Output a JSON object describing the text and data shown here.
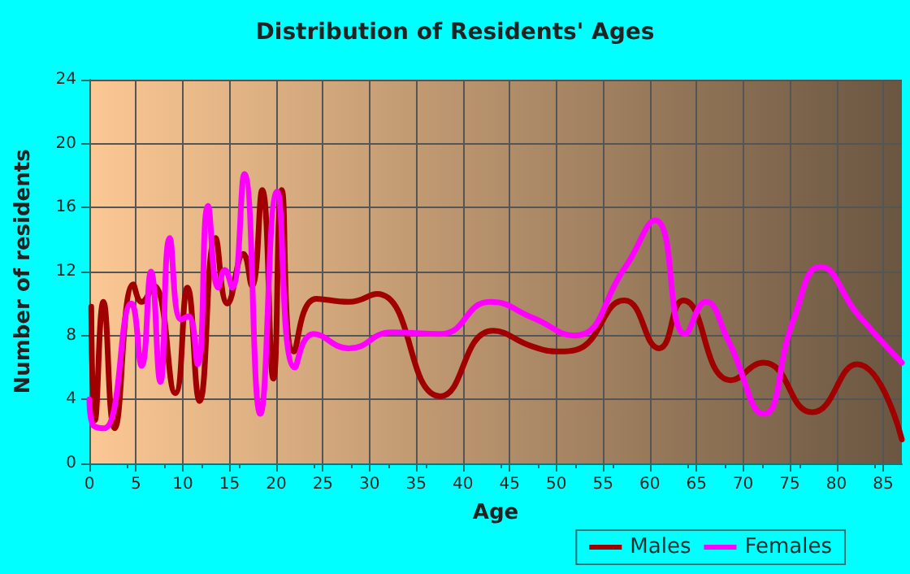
{
  "chart_data": {
    "type": "line",
    "title": "Distribution of Residents' Ages",
    "xlabel": "Age",
    "ylabel": "Number of residents",
    "xlim": [
      0,
      87
    ],
    "xticks": [
      0,
      5,
      10,
      15,
      20,
      25,
      30,
      35,
      40,
      45,
      50,
      55,
      60,
      65,
      70,
      75,
      80,
      85
    ],
    "ylim": [
      0,
      24
    ],
    "yticks": [
      0,
      4,
      8,
      12,
      16,
      20,
      24
    ],
    "grid": true,
    "legend": "bottom",
    "marker": "none",
    "line_style": "solid",
    "series": [
      {
        "name": "Males",
        "color": "#a00000",
        "x": [
          0.2,
          0.6,
          1.5,
          2.7,
          4.7,
          5.6,
          6.9,
          9.2,
          10.5,
          11.8,
          13.5,
          14.8,
          16.5,
          17.4,
          18.5,
          19.7,
          20.6,
          21.9,
          24.3,
          27.8,
          30.8,
          37.6,
          43.2,
          47.5,
          50.4,
          52.1,
          57.3,
          61,
          63.6,
          68.7,
          72.2,
          77.4,
          82.2,
          87
        ],
        "values": [
          9.8,
          2.7,
          10.1,
          2.2,
          11.2,
          10.1,
          11.1,
          4.4,
          11,
          3.9,
          14.1,
          10,
          13.1,
          11.1,
          17.1,
          5.3,
          17.1,
          7,
          10.3,
          10.1,
          10.6,
          4.2,
          8.3,
          7.3,
          7,
          7.1,
          10.2,
          7.2,
          10.2,
          5.2,
          6.3,
          3.2,
          6.2,
          1.5
        ]
      },
      {
        "name": "Females",
        "color": "#ff00ff",
        "x": [
          0,
          0.3,
          1.6,
          4.5,
          5.6,
          6.6,
          7.6,
          8.6,
          9.8,
          10.6,
          11.6,
          12.7,
          13.8,
          14.5,
          15.3,
          16.6,
          18.3,
          20.1,
          22,
          24,
          27.8,
          32.4,
          37.6,
          42.9,
          47.5,
          51.9,
          57.3,
          60.6,
          63.8,
          66,
          68.4,
          72.2,
          75.4,
          78.3,
          82.3,
          87
        ],
        "values": [
          4,
          2.5,
          2.2,
          10,
          6.1,
          12,
          5.1,
          14.1,
          9,
          9.2,
          6.2,
          16.1,
          11,
          12.1,
          11,
          18.1,
          3.1,
          17,
          6,
          8.1,
          7.2,
          8.2,
          8.1,
          10.1,
          9.1,
          8,
          12.2,
          15.2,
          8.1,
          10.1,
          7.7,
          3.1,
          9,
          12.3,
          9.3,
          6.3
        ]
      }
    ]
  }
}
